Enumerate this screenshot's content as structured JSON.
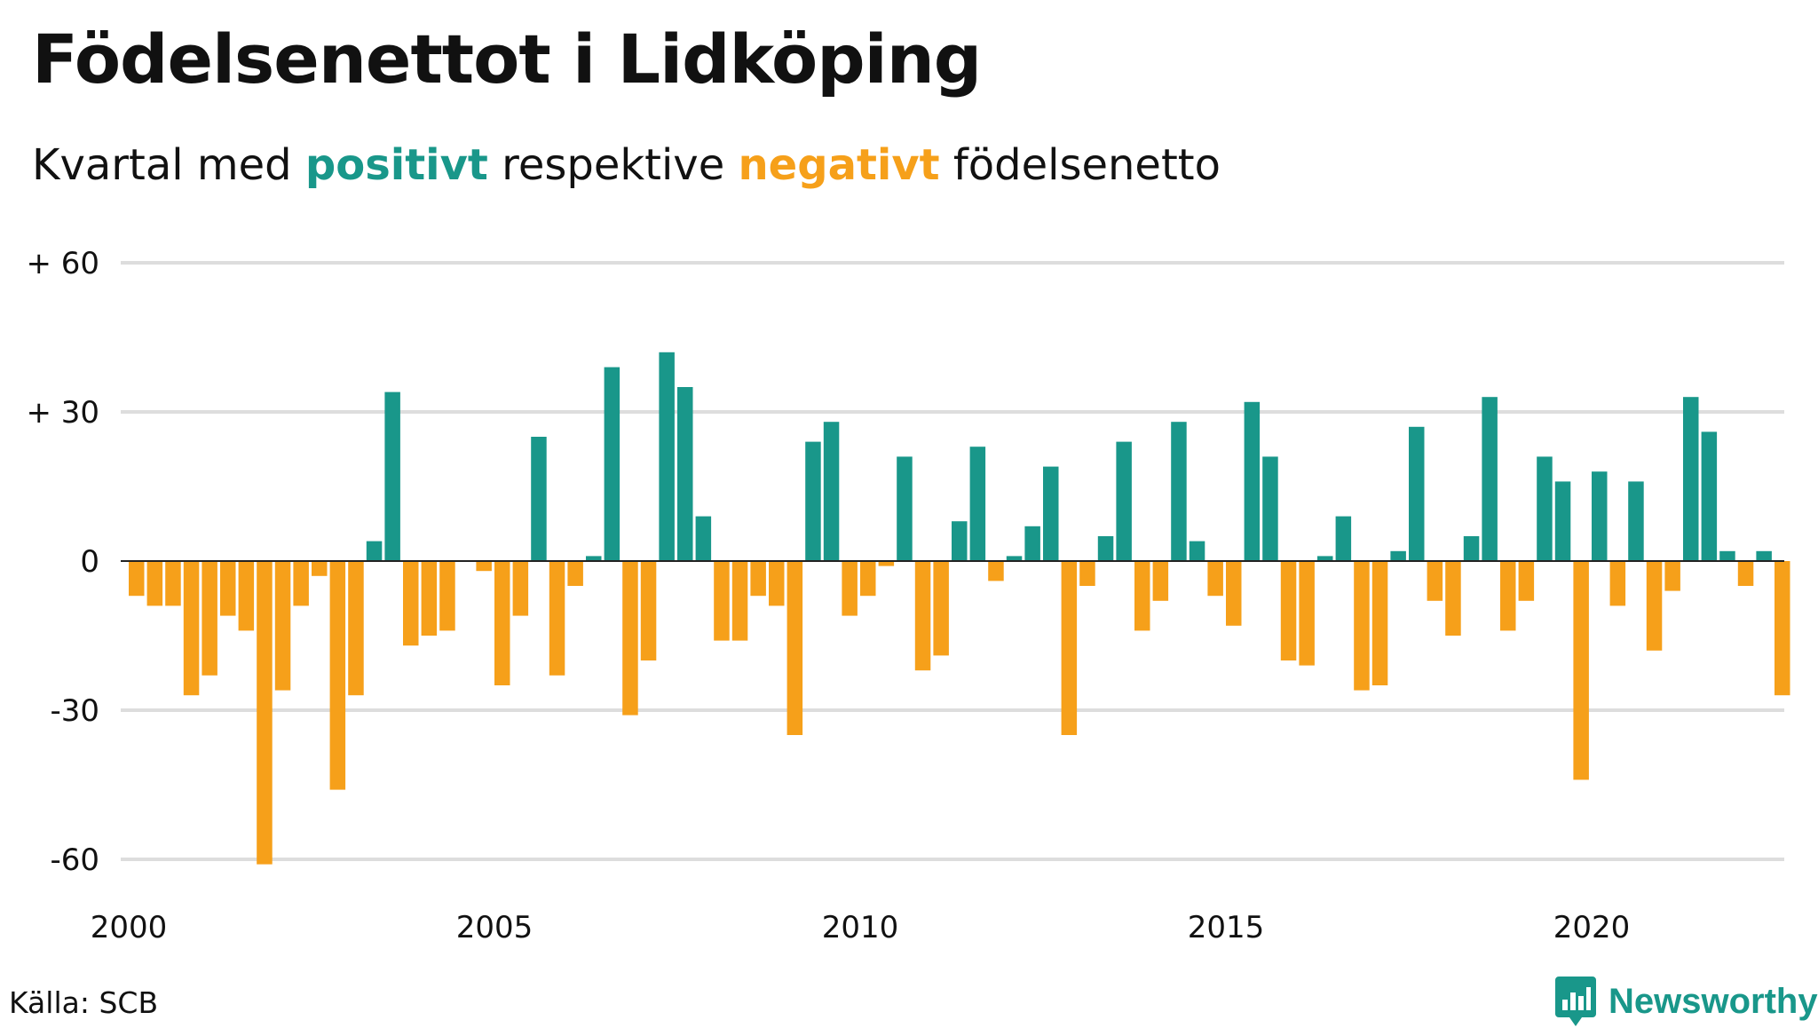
{
  "title": "Födelsenettot i Lidköping",
  "subtitle": {
    "part1": "Kvartal med ",
    "positive": "positivt",
    "part2": " respektive ",
    "negative": "negativt",
    "part3": " födelsenetto"
  },
  "source": "Källa: SCB",
  "brand": {
    "name": "Newsworthy",
    "icon": "bar-chart-logo-icon"
  },
  "colors": {
    "positive": "#19978a",
    "negative": "#f6a01a",
    "grid": "#dddddd",
    "zero_line": "#222222"
  },
  "chart_data": {
    "type": "bar",
    "title": "Födelsenettot i Lidköping",
    "subtitle": "Kvartal med positivt respektive negativt födelsenetto",
    "xlabel": "",
    "ylabel": "",
    "ylim": [
      -65,
      65
    ],
    "yticks": [
      {
        "value": 60,
        "label": "+ 60"
      },
      {
        "value": 30,
        "label": "+ 30"
      },
      {
        "value": 0,
        "label": "0"
      },
      {
        "value": -30,
        "label": "-30"
      },
      {
        "value": -60,
        "label": "-60"
      }
    ],
    "xticks": [
      "2000",
      "2005",
      "2010",
      "2015",
      "2020"
    ],
    "grid": true,
    "start_year": 2000,
    "quarters_per_year": 4,
    "values": [
      -7,
      -9,
      -9,
      -27,
      -23,
      -11,
      -14,
      -61,
      -26,
      -9,
      -3,
      -46,
      -27,
      4,
      34,
      -17,
      -15,
      -14,
      0,
      -2,
      -25,
      -11,
      25,
      -23,
      -5,
      1,
      39,
      -31,
      -20,
      42,
      35,
      9,
      -16,
      -16,
      -7,
      -9,
      -35,
      24,
      28,
      -11,
      -7,
      -1,
      21,
      -22,
      -19,
      8,
      23,
      -4,
      1,
      7,
      19,
      -35,
      -5,
      5,
      24,
      -14,
      -8,
      28,
      4,
      -7,
      -13,
      32,
      21,
      -20,
      -21,
      1,
      9,
      -26,
      -25,
      2,
      27,
      -8,
      -15,
      5,
      33,
      -14,
      -8,
      21,
      16,
      -44,
      18,
      -9,
      16,
      -18,
      -6,
      33,
      26,
      2,
      -5,
      2,
      -27
    ]
  }
}
